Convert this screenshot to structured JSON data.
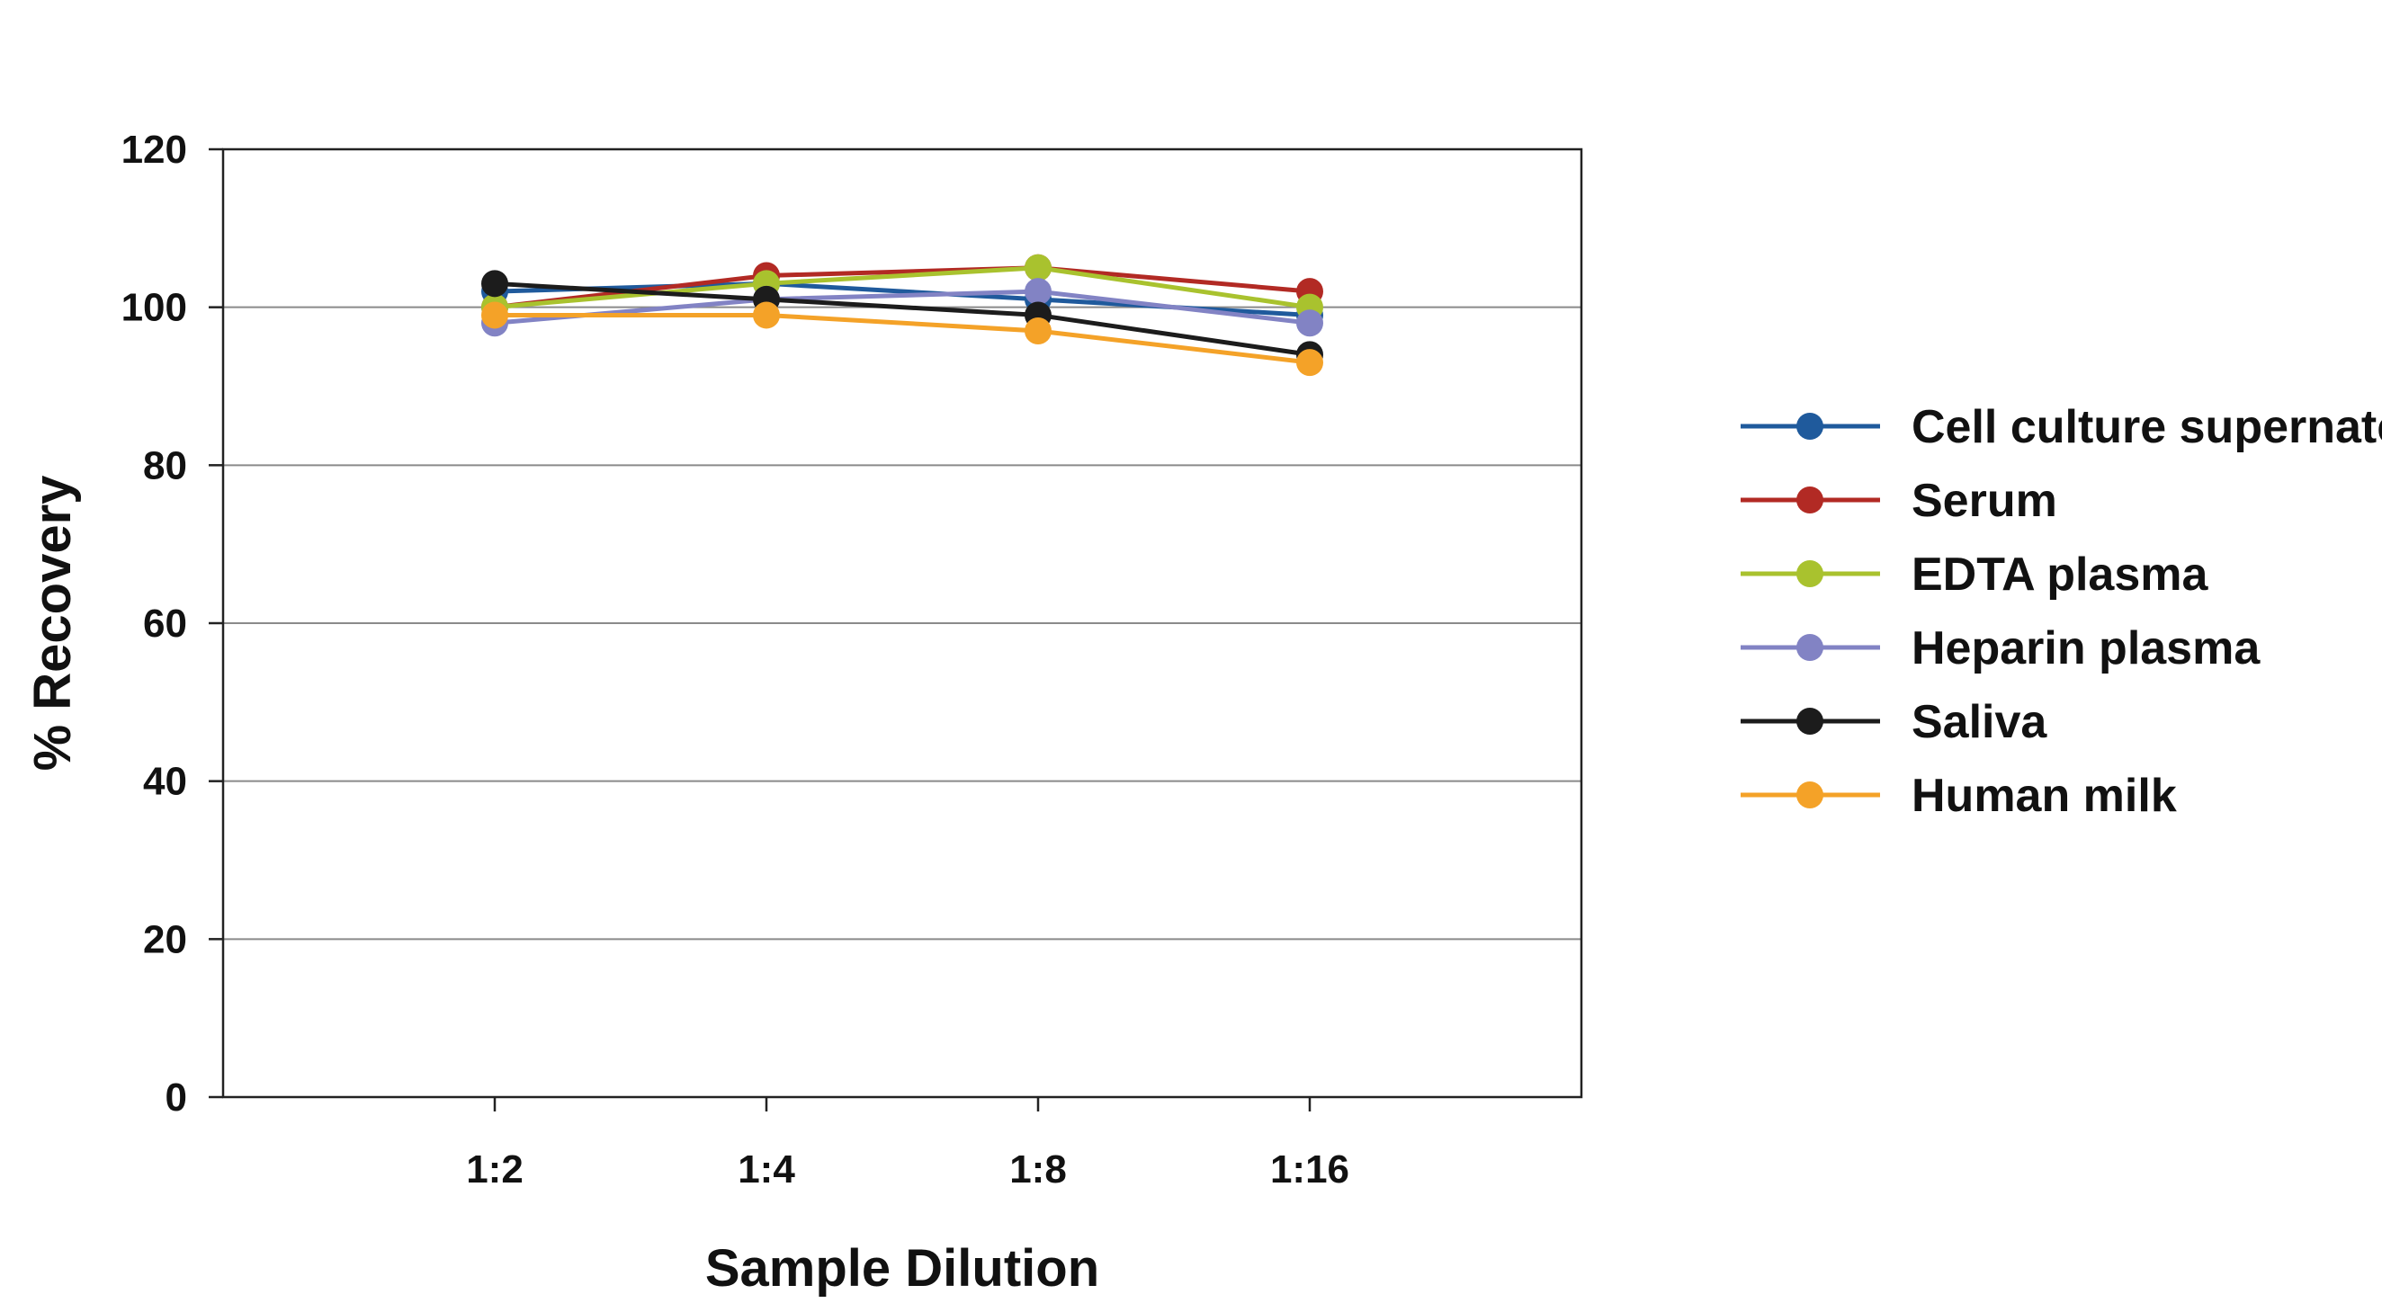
{
  "chart_data": {
    "type": "line",
    "title": "",
    "xlabel": "Sample Dilution",
    "ylabel": "% Recovery",
    "categories": [
      "1:2",
      "1:4",
      "1:8",
      "1:16"
    ],
    "ylim": [
      0,
      120
    ],
    "yticks": [
      0,
      20,
      40,
      60,
      80,
      100,
      120
    ],
    "grid": true,
    "legend_position": "right",
    "series": [
      {
        "name": "Cell culture supernates",
        "color": "#1f5a9c",
        "values": [
          102,
          103,
          101,
          99
        ]
      },
      {
        "name": "Serum",
        "color": "#b22a24",
        "values": [
          100,
          104,
          105,
          102
        ]
      },
      {
        "name": "EDTA plasma",
        "color": "#a9c22e",
        "values": [
          100,
          103,
          105,
          100
        ]
      },
      {
        "name": "Heparin plasma",
        "color": "#8283c4",
        "values": [
          98,
          101,
          102,
          98
        ]
      },
      {
        "name": "Saliva",
        "color": "#1c1c1c",
        "values": [
          103,
          101,
          99,
          94
        ]
      },
      {
        "name": "Human milk",
        "color": "#f4a228",
        "values": [
          99,
          99,
          97,
          93
        ]
      }
    ]
  }
}
